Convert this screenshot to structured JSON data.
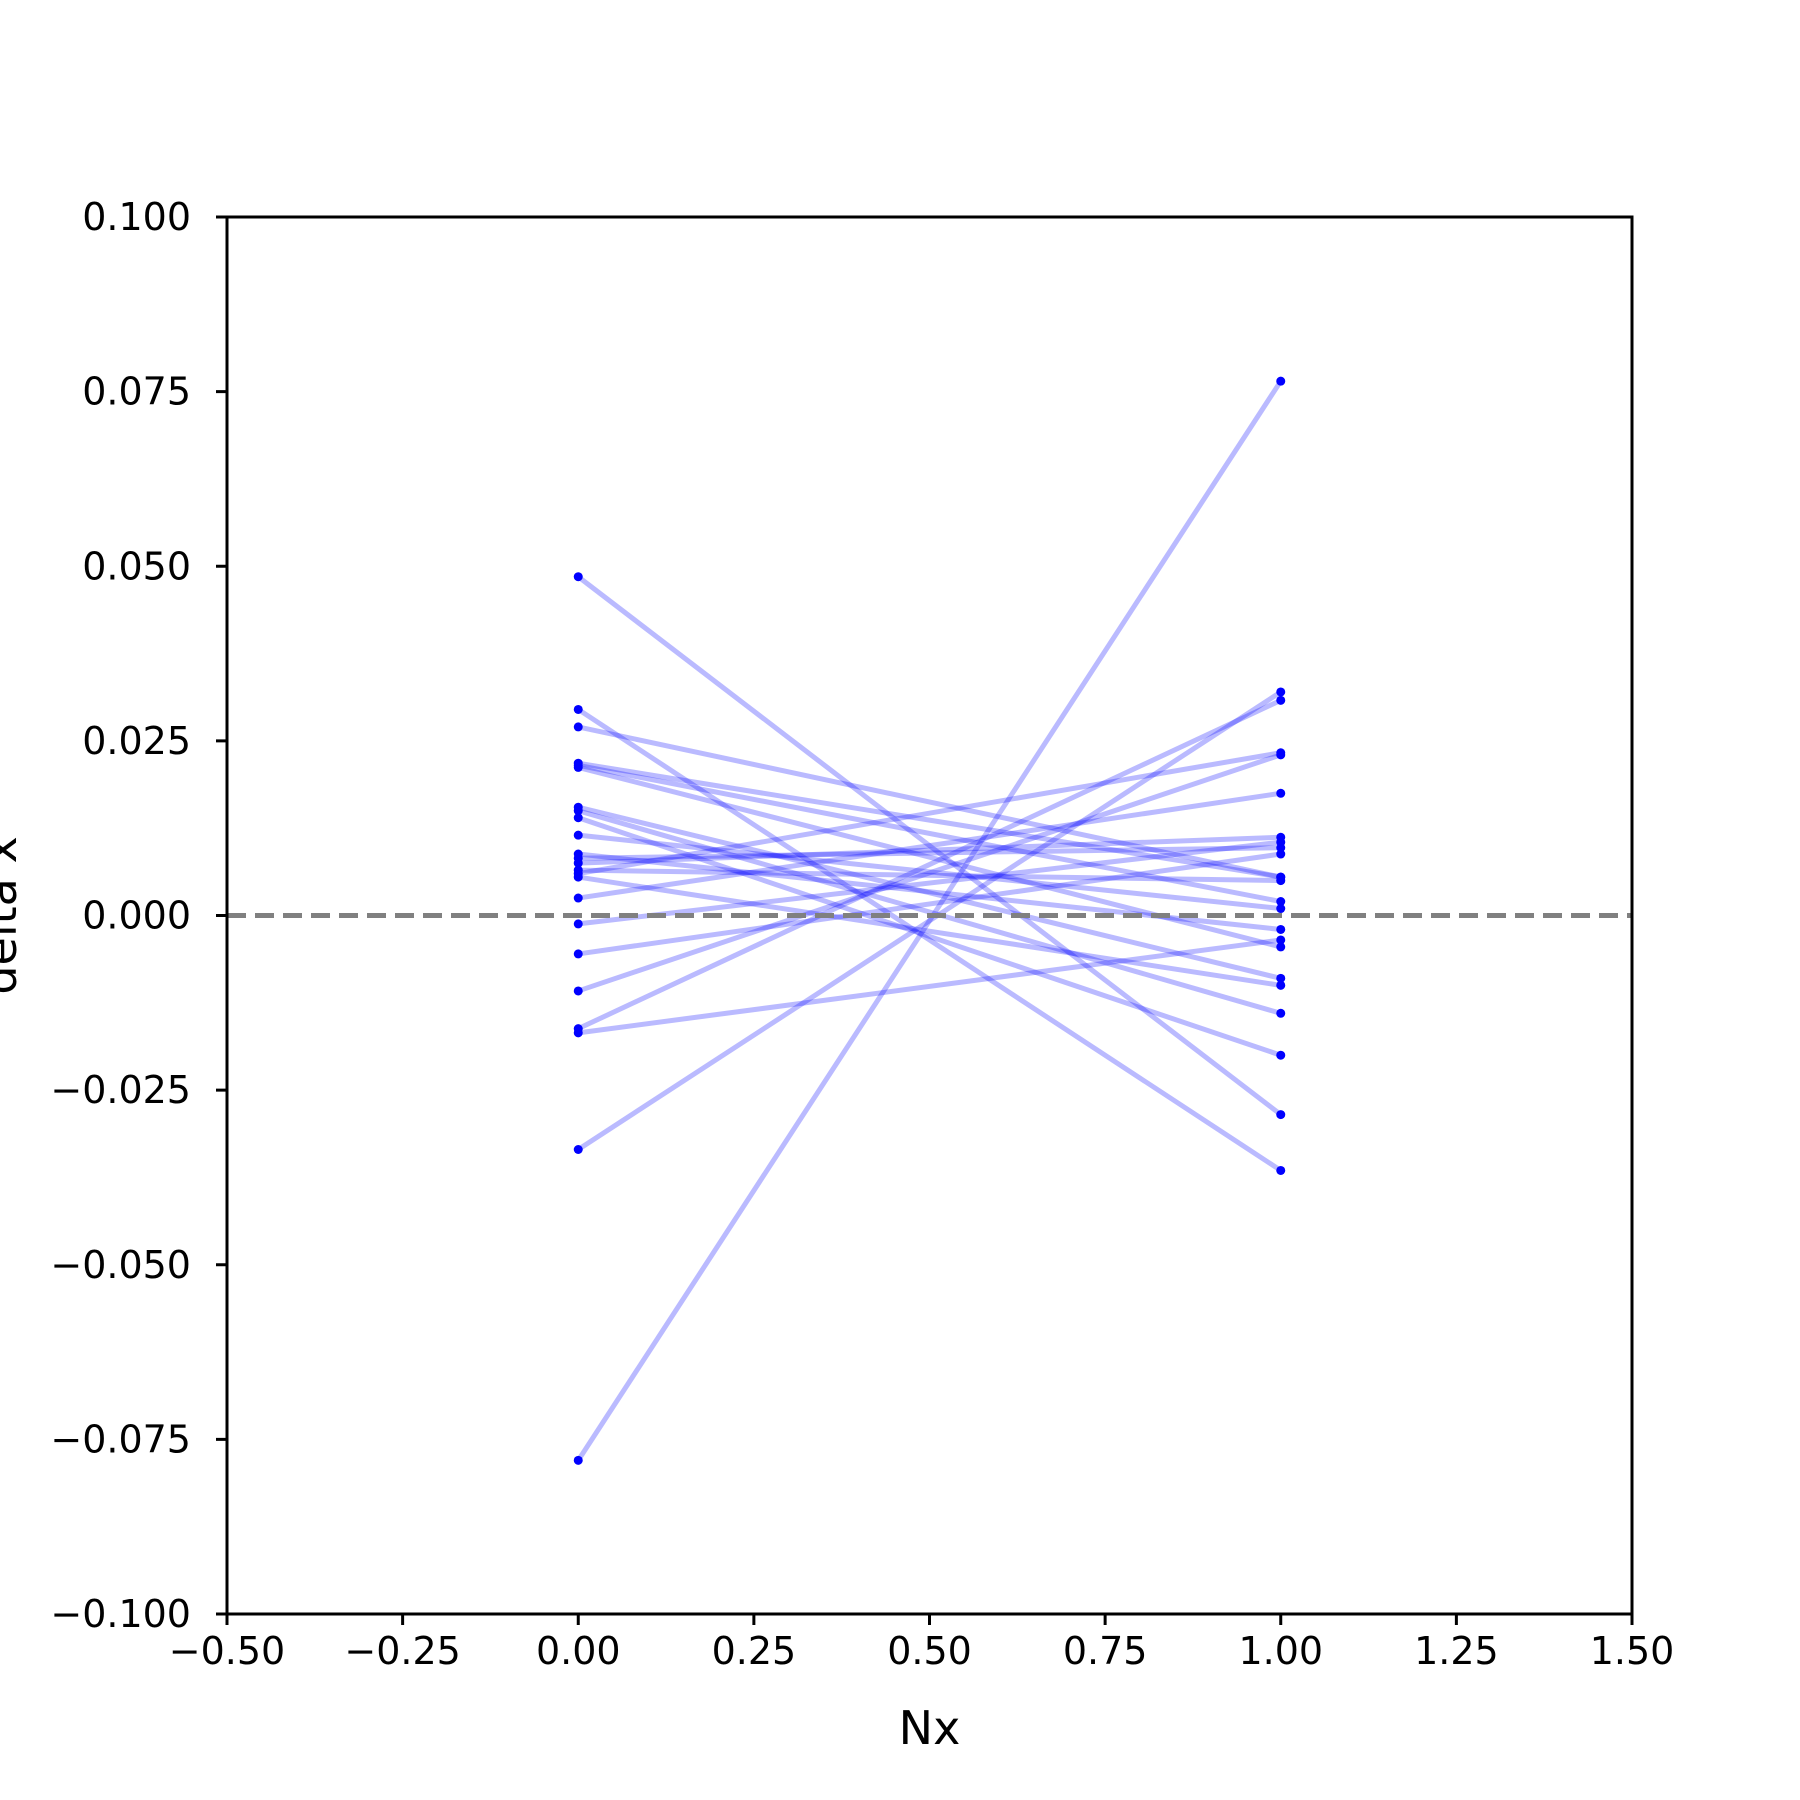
{
  "chart_data": {
    "type": "line",
    "title": "",
    "xlabel": "Nx",
    "ylabel": "delta x",
    "xlim": [
      -0.5,
      1.5
    ],
    "ylim": [
      -0.1,
      0.1
    ],
    "grid": false,
    "x_ticks": [
      -0.5,
      -0.25,
      0.0,
      0.25,
      0.5,
      0.75,
      1.0,
      1.25,
      1.5
    ],
    "x_tick_labels": [
      "−0.50",
      "−0.25",
      "0.00",
      "0.25",
      "0.50",
      "0.75",
      "1.00",
      "1.25",
      "1.50"
    ],
    "y_ticks": [
      -0.1,
      -0.075,
      -0.05,
      -0.025,
      0.0,
      0.025,
      0.05,
      0.075,
      0.1
    ],
    "y_tick_labels": [
      "−0.100",
      "−0.075",
      "−0.050",
      "−0.025",
      "0.000",
      "0.025",
      "0.050",
      "0.075",
      "0.100"
    ],
    "reference_line": {
      "y": 0.0,
      "style": "dashed",
      "color": "#808080"
    },
    "line_color": "#0000ff",
    "line_opacity": 0.27,
    "marker_color": "#0000ff",
    "x": [
      0,
      1
    ],
    "series": [
      {
        "values": [
          -0.078,
          0.0765
        ]
      },
      {
        "values": [
          0.0485,
          -0.0285
        ]
      },
      {
        "values": [
          0.0295,
          -0.0365
        ]
      },
      {
        "values": [
          0.027,
          0.0055
        ]
      },
      {
        "values": [
          0.0215,
          0.002
        ]
      },
      {
        "values": [
          0.0218,
          0.0055
        ]
      },
      {
        "values": [
          0.0212,
          -0.0045
        ]
      },
      {
        "values": [
          0.0155,
          -0.009
        ]
      },
      {
        "values": [
          0.015,
          -0.014
        ]
      },
      {
        "values": [
          0.014,
          -0.02
        ]
      },
      {
        "values": [
          0.0115,
          0.001
        ]
      },
      {
        "values": [
          0.0088,
          -0.002
        ]
      },
      {
        "values": [
          0.0082,
          0.0097
        ]
      },
      {
        "values": [
          0.0075,
          0.0112
        ]
      },
      {
        "values": [
          0.0065,
          0.005
        ]
      },
      {
        "values": [
          0.006,
          0.0233
        ]
      },
      {
        "values": [
          0.0055,
          -0.01
        ]
      },
      {
        "values": [
          0.0025,
          0.0175
        ]
      },
      {
        "values": [
          -0.0012,
          0.0105
        ]
      },
      {
        "values": [
          -0.0055,
          0.0088
        ]
      },
      {
        "values": [
          -0.0108,
          0.023
        ]
      },
      {
        "values": [
          -0.0162,
          0.0308
        ]
      },
      {
        "values": [
          -0.0168,
          -0.0035
        ]
      },
      {
        "values": [
          -0.0335,
          0.032
        ]
      }
    ]
  }
}
